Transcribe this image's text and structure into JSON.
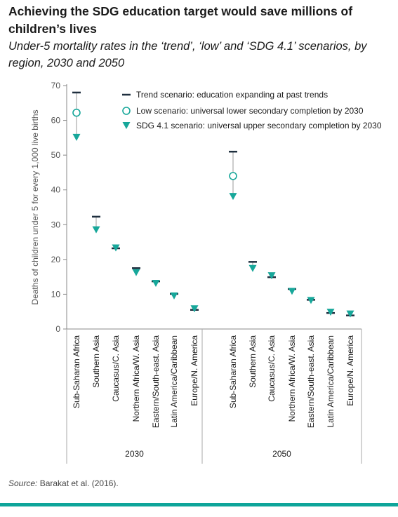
{
  "title": "Achieving the SDG education target would save millions of children’s lives",
  "subtitle": "Under-5 mortality rates in the ‘trend’, ‘low’ and ‘SDG 4.1’ scenarios, by region, 2030 and 2050",
  "source": {
    "label": "Source:",
    "text": " Barakat et al. (2016)."
  },
  "colors": {
    "trend": "#1f2f3f",
    "teal": "#17a79a",
    "axis": "#888888",
    "connector": "#9a9a9a"
  },
  "chart_data": {
    "type": "scatter",
    "ylabel": "Deaths of children under 5 for every 1,000 live births",
    "ylim": [
      0,
      70
    ],
    "yticks": [
      0,
      10,
      20,
      30,
      40,
      50,
      60,
      70
    ],
    "grid": false,
    "legend_position": "top-right",
    "legend": [
      {
        "key": "trend",
        "marker": "dash",
        "label": "Trend scenario: education expanding at past trends"
      },
      {
        "key": "low",
        "marker": "open-circle",
        "label": "Low scenario: universal lower secondary completion by 2030"
      },
      {
        "key": "sdg",
        "marker": "triangle-down",
        "label": "SDG 4.1 scenario: universal upper secondary completion by 2030"
      }
    ],
    "groups": [
      {
        "name": "2030",
        "categories": [
          "Sub-Saharan Africa",
          "Southern Asia",
          "Caucasus/C. Asia",
          "Northern Africa/W. Asia",
          "Eastern/South-east. Asia",
          "Latin America/Caribbean",
          "Europe/N. America"
        ],
        "trend": [
          68,
          32.3,
          23.2,
          17.5,
          13.7,
          10.1,
          5.5
        ],
        "low": [
          62.2,
          null,
          null,
          null,
          null,
          null,
          null
        ],
        "sdg": [
          54.3,
          27.7,
          22.5,
          15.4,
          12.3,
          8.7,
          5.0
        ]
      },
      {
        "name": "2050",
        "categories": [
          "Sub-Saharan Africa",
          "Southern Asia",
          "Caucasus/C. Asia",
          "Northern Africa/W. Asia",
          "Eastern/South-east. Asia",
          "Latin America/Caribbean",
          "Europe/N. America"
        ],
        "trend": [
          51,
          19.3,
          14.9,
          11.5,
          8.4,
          4.6,
          3.9
        ],
        "low": [
          44,
          null,
          null,
          null,
          null,
          null,
          null
        ],
        "sdg": [
          37.3,
          16.6,
          14.5,
          10.0,
          7.4,
          4.0,
          3.5
        ]
      }
    ]
  }
}
